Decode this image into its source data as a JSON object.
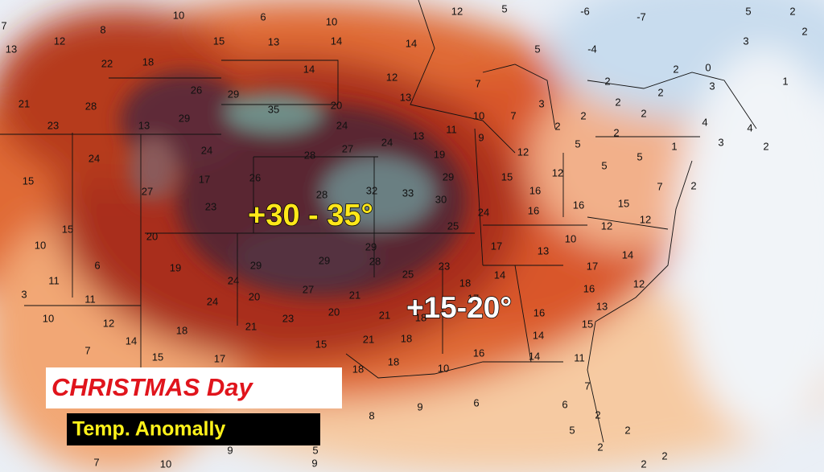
{
  "headline": {
    "title": "CHRISTMAS Day",
    "subtitle": "Temp. Anomally"
  },
  "callouts": [
    "+30 - 35°",
    "+15-20°"
  ],
  "map_labels": [
    7,
    10,
    6,
    10,
    12,
    5,
    -6,
    -7,
    5,
    2,
    12,
    8,
    15,
    13,
    14,
    14,
    3,
    2,
    13,
    22,
    18,
    14,
    5,
    -4,
    2,
    0,
    12,
    2,
    1,
    3,
    21,
    28,
    26,
    29,
    35,
    13,
    7,
    2,
    2,
    23,
    13,
    29,
    20,
    10,
    7,
    3,
    2,
    2,
    4,
    4,
    24,
    11,
    2,
    2,
    3,
    24,
    24,
    28,
    27,
    24,
    13,
    9,
    5,
    5,
    1,
    2,
    12,
    19,
    5,
    12,
    15,
    17,
    26,
    29,
    15,
    27,
    23,
    28,
    32,
    33,
    30,
    16,
    7,
    2,
    15,
    20,
    25,
    24,
    16,
    16,
    15,
    12,
    12,
    10,
    6,
    29,
    29,
    29,
    17,
    10,
    14,
    19,
    24,
    28,
    25,
    13,
    23,
    14,
    17,
    11,
    3,
    20,
    27,
    21,
    18,
    16,
    12,
    11,
    24,
    20,
    13,
    10,
    12,
    21,
    23,
    21,
    18,
    17,
    16,
    15,
    7,
    14,
    18,
    15,
    21,
    18,
    14,
    15,
    17,
    18,
    18,
    16,
    10,
    14,
    11,
    8,
    9,
    6,
    6,
    7,
    2,
    2,
    5,
    9,
    5,
    10,
    7,
    9,
    2,
    2,
    2
  ]
}
